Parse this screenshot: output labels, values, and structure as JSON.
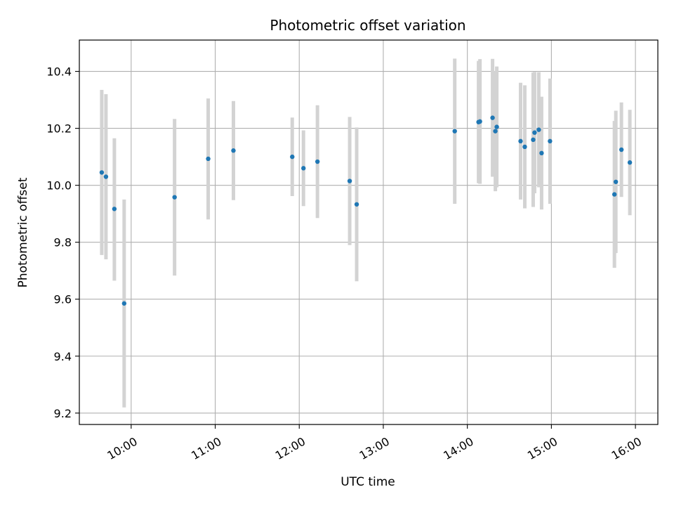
{
  "chart_data": {
    "type": "scatter",
    "title": "Photometric offset variation",
    "xlabel": "UTC time",
    "ylabel": "Photometric offset",
    "x_unit": "hours (UTC)",
    "xlim": [
      "09:23",
      "16:16"
    ],
    "ylim": [
      9.16,
      10.51
    ],
    "grid": true,
    "x_ticks": [
      {
        "t": "10:00",
        "label": "10:00"
      },
      {
        "t": "11:00",
        "label": "11:00"
      },
      {
        "t": "12:00",
        "label": "12:00"
      },
      {
        "t": "13:00",
        "label": "13:00"
      },
      {
        "t": "14:00",
        "label": "14:00"
      },
      {
        "t": "15:00",
        "label": "15:00"
      },
      {
        "t": "16:00",
        "label": "16:00"
      }
    ],
    "y_ticks": [
      {
        "v": 9.2,
        "label": "9.2"
      },
      {
        "v": 9.4,
        "label": "9.4"
      },
      {
        "v": 9.6,
        "label": "9.6"
      },
      {
        "v": 9.8,
        "label": "9.8"
      },
      {
        "v": 10.0,
        "label": "10.0"
      },
      {
        "v": 10.2,
        "label": "10.2"
      },
      {
        "v": 10.4,
        "label": "10.4"
      }
    ],
    "colors": {
      "point": "#1f77b4",
      "errorbar": "#d3d3d3",
      "grid": "#b0b0b0"
    },
    "series": [
      {
        "points": [
          {
            "t": "09:39",
            "y": 10.045,
            "lo": 9.755,
            "hi": 10.335
          },
          {
            "t": "09:42",
            "y": 10.03,
            "lo": 9.74,
            "hi": 10.32
          },
          {
            "t": "09:48",
            "y": 9.917,
            "lo": 9.665,
            "hi": 10.165
          },
          {
            "t": "09:55",
            "y": 9.585,
            "lo": 9.22,
            "hi": 9.95
          },
          {
            "t": "10:31",
            "y": 9.958,
            "lo": 9.683,
            "hi": 10.233
          },
          {
            "t": "10:55",
            "y": 10.093,
            "lo": 9.88,
            "hi": 10.305
          },
          {
            "t": "11:13",
            "y": 10.122,
            "lo": 9.948,
            "hi": 10.296
          },
          {
            "t": "11:55",
            "y": 10.1,
            "lo": 9.962,
            "hi": 10.238
          },
          {
            "t": "12:03",
            "y": 10.06,
            "lo": 9.927,
            "hi": 10.193
          },
          {
            "t": "12:13",
            "y": 10.083,
            "lo": 9.885,
            "hi": 10.281
          },
          {
            "t": "12:36",
            "y": 10.015,
            "lo": 9.79,
            "hi": 10.24
          },
          {
            "t": "12:41",
            "y": 9.933,
            "lo": 9.663,
            "hi": 10.203
          },
          {
            "t": "13:51",
            "y": 10.19,
            "lo": 9.935,
            "hi": 10.445
          },
          {
            "t": "14:08",
            "y": 10.222,
            "lo": 10.007,
            "hi": 10.437
          },
          {
            "t": "14:09",
            "y": 10.224,
            "lo": 10.005,
            "hi": 10.443
          },
          {
            "t": "14:18",
            "y": 10.237,
            "lo": 10.03,
            "hi": 10.444
          },
          {
            "t": "14:20",
            "y": 10.19,
            "lo": 9.979,
            "hi": 10.401
          },
          {
            "t": "14:21",
            "y": 10.205,
            "lo": 9.993,
            "hi": 10.417
          },
          {
            "t": "14:38",
            "y": 10.155,
            "lo": 9.95,
            "hi": 10.36
          },
          {
            "t": "14:41",
            "y": 10.135,
            "lo": 9.919,
            "hi": 10.351
          },
          {
            "t": "14:47",
            "y": 10.16,
            "lo": 9.924,
            "hi": 10.396
          },
          {
            "t": "14:48",
            "y": 10.185,
            "lo": 9.972,
            "hi": 10.398
          },
          {
            "t": "14:51",
            "y": 10.195,
            "lo": 9.993,
            "hi": 10.397
          },
          {
            "t": "14:53",
            "y": 10.113,
            "lo": 9.915,
            "hi": 10.311
          },
          {
            "t": "14:59",
            "y": 10.155,
            "lo": 9.935,
            "hi": 10.375
          },
          {
            "t": "15:45",
            "y": 9.968,
            "lo": 9.71,
            "hi": 10.226
          },
          {
            "t": "15:46",
            "y": 10.012,
            "lo": 9.762,
            "hi": 10.262
          },
          {
            "t": "15:50",
            "y": 10.125,
            "lo": 9.959,
            "hi": 10.291
          },
          {
            "t": "15:56",
            "y": 10.08,
            "lo": 9.895,
            "hi": 10.265
          }
        ]
      }
    ]
  }
}
